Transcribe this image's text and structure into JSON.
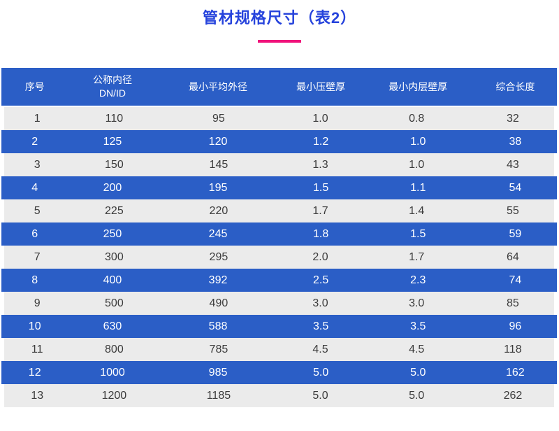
{
  "page": {
    "title": "管材规格尺寸（表2）",
    "title_color": "#2643DC",
    "underline_color": "#F0127B"
  },
  "table": {
    "header_bg": "#2B5EC6",
    "alt_row_bg": "#EBEBEB",
    "blue_row_bg": "#2B5EC6",
    "columns": [
      {
        "label": "序号",
        "sub": ""
      },
      {
        "label": "公称内径",
        "sub": "DN/ID"
      },
      {
        "label": "最小平均外径",
        "sub": ""
      },
      {
        "label": "最小压壁厚",
        "sub": ""
      },
      {
        "label": "最小内层壁厚",
        "sub": ""
      },
      {
        "label": "综合长度",
        "sub": ""
      }
    ],
    "rows": [
      [
        "1",
        "110",
        "95",
        "1.0",
        "0.8",
        "32"
      ],
      [
        "2",
        "125",
        "120",
        "1.2",
        "1.0",
        "38"
      ],
      [
        "3",
        "150",
        "145",
        "1.3",
        "1.0",
        "43"
      ],
      [
        "4",
        "200",
        "195",
        "1.5",
        "1.1",
        "54"
      ],
      [
        "5",
        "225",
        "220",
        "1.7",
        "1.4",
        "55"
      ],
      [
        "6",
        "250",
        "245",
        "1.8",
        "1.5",
        "59"
      ],
      [
        "7",
        "300",
        "295",
        "2.0",
        "1.7",
        "64"
      ],
      [
        "8",
        "400",
        "392",
        "2.5",
        "2.3",
        "74"
      ],
      [
        "9",
        "500",
        "490",
        "3.0",
        "3.0",
        "85"
      ],
      [
        "10",
        "630",
        "588",
        "3.5",
        "3.5",
        "96"
      ],
      [
        "11",
        "800",
        "785",
        "4.5",
        "4.5",
        "118"
      ],
      [
        "12",
        "1000",
        "985",
        "5.0",
        "5.0",
        "162"
      ],
      [
        "13",
        "1200",
        "1185",
        "5.0",
        "5.0",
        "262"
      ]
    ]
  }
}
